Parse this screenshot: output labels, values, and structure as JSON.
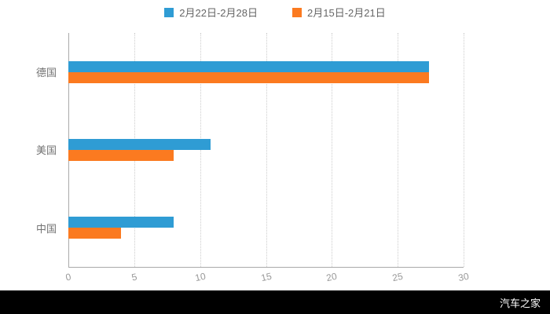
{
  "legend": {
    "items": [
      {
        "label": "2月22日-2月28日",
        "color": "#2F9CD4"
      },
      {
        "label": "2月15日-2月21日",
        "color": "#FB7A20"
      }
    ]
  },
  "chart_data": {
    "type": "bar",
    "orientation": "horizontal",
    "title": "",
    "categories": [
      "德国",
      "美国",
      "中国"
    ],
    "series": [
      {
        "name": "2月22日-2月28日",
        "color": "#2F9CD4",
        "values": [
          27.4,
          10.8,
          8
        ]
      },
      {
        "name": "2月15日-2月21日",
        "color": "#FB7A20",
        "values": [
          27.4,
          8,
          4
        ]
      }
    ],
    "xlim": [
      0,
      30
    ],
    "xticks": [
      0,
      5,
      10,
      15,
      20,
      25,
      30
    ],
    "grid": true,
    "legend_position": "top-center"
  },
  "watermark": "汽车之家",
  "colors": {
    "grid": "#cccccc",
    "axis": "#aaaaaa",
    "tick_label": "#999999",
    "category_label": "#737373",
    "footer_bg": "#000000",
    "footer_text": "#ffffff"
  }
}
